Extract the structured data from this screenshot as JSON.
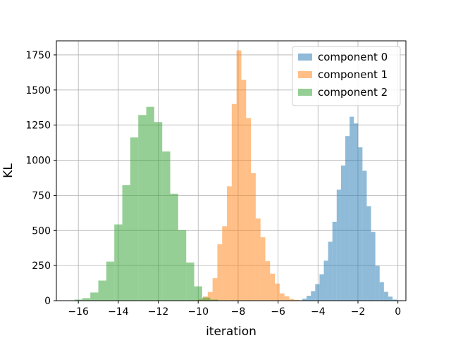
{
  "chart_data": {
    "type": "histogram",
    "title": "",
    "xlabel": "iteration",
    "ylabel": "KL",
    "xlim": [
      -17.1,
      0.4
    ],
    "ylim": [
      0,
      1850
    ],
    "xticks": [
      -16,
      -14,
      -12,
      -10,
      -8,
      -6,
      -4,
      -2,
      0
    ],
    "yticks": [
      0,
      250,
      500,
      750,
      1000,
      1250,
      1500,
      1750
    ],
    "grid": true,
    "legend_position": "top-right",
    "bar_alpha": 0.5,
    "series": [
      {
        "name": "component 0",
        "color": "#1f77b4",
        "bin_start": -5.0,
        "bin_width": 0.215,
        "values": [
          3,
          14,
          35,
          68,
          118,
          188,
          285,
          420,
          562,
          790,
          962,
          1172,
          1310,
          1262,
          1092,
          925,
          672,
          490,
          248,
          132,
          63,
          29,
          8,
          3
        ]
      },
      {
        "name": "component 1",
        "color": "#ff7f0e",
        "bin_start": -10.0,
        "bin_width": 0.24,
        "values": [
          10,
          30,
          62,
          160,
          402,
          530,
          815,
          1400,
          1782,
          1572,
          1300,
          908,
          585,
          452,
          282,
          192,
          122,
          52,
          32,
          12,
          6,
          2
        ]
      },
      {
        "name": "component 2",
        "color": "#2ca02c",
        "bin_start": -16.2,
        "bin_width": 0.4,
        "values": [
          8,
          18,
          58,
          143,
          278,
          543,
          822,
          1162,
          1322,
          1380,
          1272,
          1062,
          762,
          502,
          272,
          102,
          22,
          8,
          2
        ]
      }
    ]
  }
}
